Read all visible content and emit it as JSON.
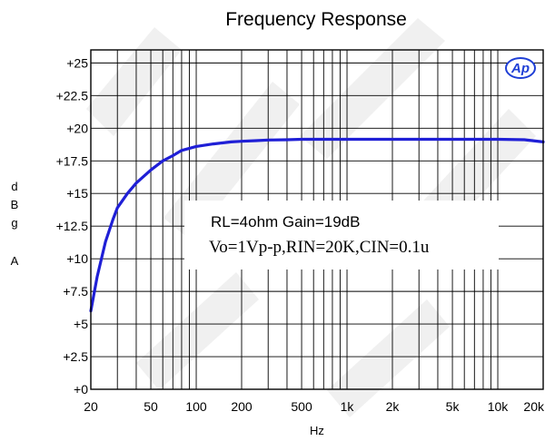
{
  "chart_data": {
    "type": "line",
    "title": "Frequency Response",
    "xlabel": "Hz",
    "ylabel": "dBgA",
    "ylabel_chars": [
      "d",
      "B",
      "g",
      "A"
    ],
    "xscale": "log",
    "xlim": [
      20,
      20000
    ],
    "ylim": [
      0,
      26
    ],
    "grid": true,
    "x_ticks": [
      20,
      50,
      100,
      200,
      500,
      1000,
      2000,
      5000,
      10000,
      20000
    ],
    "x_tick_labels": [
      "20",
      "50",
      "100",
      "200",
      "500",
      "1k",
      "2k",
      "5k",
      "10k",
      "20k"
    ],
    "y_ticks": [
      0,
      2.5,
      5,
      7.5,
      10,
      12.5,
      15,
      17.5,
      20,
      22.5,
      25
    ],
    "y_tick_labels": [
      "+0",
      "+2.5",
      "+5",
      "+7.5",
      "+10",
      "+12.5",
      "+15",
      "+17.5",
      "+20",
      "+22.5",
      "+25"
    ],
    "series": [
      {
        "color": "#1f1fd6",
        "x": [
          20,
          22,
          25,
          28,
          30,
          35,
          40,
          50,
          60,
          70,
          80,
          100,
          130,
          170,
          200,
          250,
          300,
          400,
          500,
          700,
          1000,
          2000,
          5000,
          10000,
          15000,
          20000
        ],
        "y": [
          6.0,
          8.6,
          11.3,
          13.0,
          13.9,
          15.0,
          15.8,
          16.8,
          17.5,
          17.9,
          18.3,
          18.6,
          18.8,
          18.95,
          19.0,
          19.05,
          19.1,
          19.12,
          19.15,
          19.15,
          19.15,
          19.15,
          19.15,
          19.15,
          19.12,
          18.95
        ]
      }
    ],
    "annotations": [
      "RL=4ohm Gain=19dB",
      "Vo=1Vp-p,RIN=20K,CIN=0.1u"
    ],
    "logo": "Ap"
  }
}
